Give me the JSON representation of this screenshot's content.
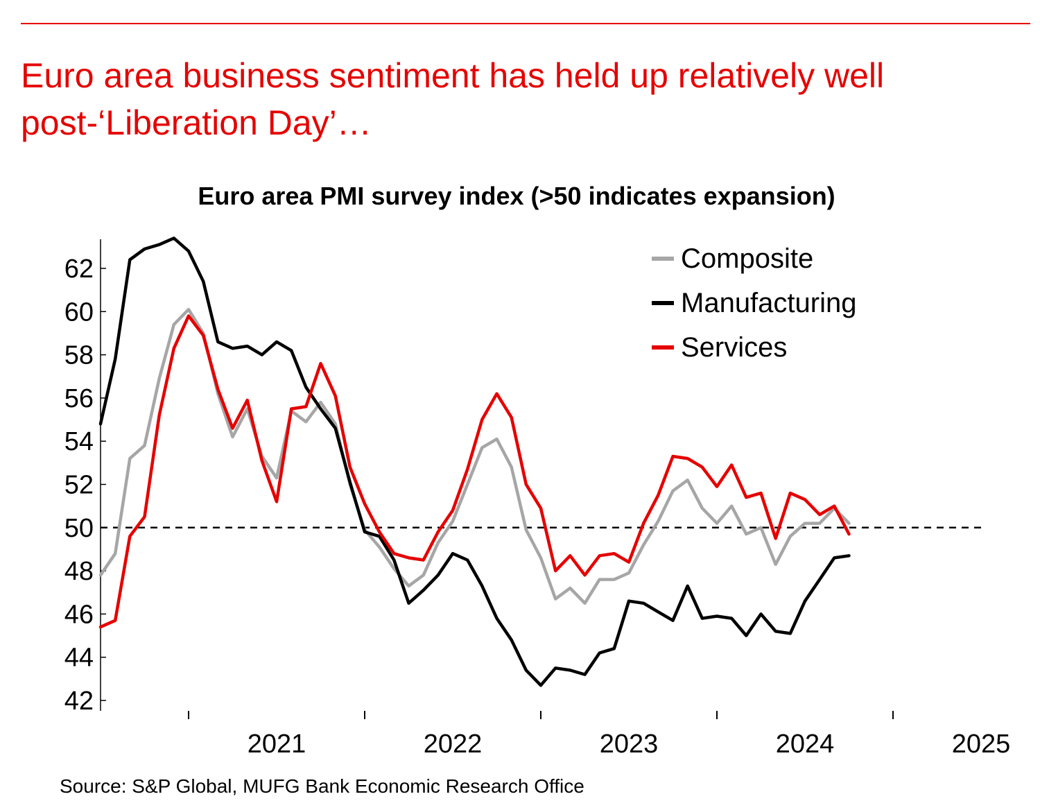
{
  "header": {
    "headline": "Euro area business sentiment has held up relatively well post-‘Liberation Day’…"
  },
  "colors": {
    "accent": "#e60000",
    "composite": "#a6a6a6",
    "manufacturing": "#000000",
    "services": "#e60000"
  },
  "footer": {
    "source": "Source: S&P Global, MUFG Bank Economic Research Office"
  },
  "chart_data": {
    "type": "line",
    "title": "Euro area PMI survey index (>50 indicates expansion)",
    "xlabel": "",
    "ylabel": "",
    "ylim": [
      42,
      63.5
    ],
    "yticks": [
      42,
      44,
      46,
      48,
      50,
      52,
      54,
      56,
      58,
      60,
      62
    ],
    "x_start": "2020-07",
    "x_range_years": [
      2020.5,
      2025.5
    ],
    "xtick_labels": [
      "2021",
      "2022",
      "2023",
      "2024",
      "2025"
    ],
    "reference_line": {
      "value": 50,
      "style": "dashed"
    },
    "legend_position": "top-right",
    "series": [
      {
        "name": "Composite",
        "color": "#a6a6a6",
        "values": [
          47.8,
          48.8,
          53.2,
          53.8,
          56.9,
          59.4,
          60.1,
          59.0,
          56.2,
          54.2,
          55.5,
          53.3,
          52.3,
          55.4,
          54.9,
          55.8,
          54.8,
          52.0,
          49.9,
          49.1,
          48.1,
          47.3,
          47.8,
          49.3,
          50.3,
          52.0,
          53.7,
          54.1,
          52.8,
          49.9,
          48.6,
          46.7,
          47.2,
          46.5,
          47.6,
          47.6,
          47.9,
          49.2,
          50.3,
          51.7,
          52.2,
          50.9,
          50.2,
          51.0,
          49.7,
          50.0,
          48.3,
          49.6,
          50.2,
          50.2,
          50.9,
          50.2
        ]
      },
      {
        "name": "Manufacturing",
        "color": "#000000",
        "values": [
          54.8,
          57.8,
          62.4,
          62.9,
          63.1,
          63.4,
          62.8,
          61.4,
          58.6,
          58.3,
          58.4,
          58.0,
          58.6,
          58.2,
          56.5,
          55.5,
          54.6,
          52.1,
          49.8,
          49.6,
          48.5,
          46.5,
          47.1,
          47.8,
          48.8,
          48.5,
          47.3,
          45.8,
          44.8,
          43.4,
          42.7,
          43.5,
          43.4,
          43.2,
          44.2,
          44.4,
          46.6,
          46.5,
          46.1,
          45.7,
          47.3,
          45.8,
          45.9,
          45.8,
          45.0,
          46.0,
          45.2,
          45.1,
          46.6,
          47.6,
          48.6,
          48.7
        ]
      },
      {
        "name": "Services",
        "color": "#e60000",
        "values": [
          45.4,
          45.7,
          49.6,
          50.5,
          55.2,
          58.3,
          59.8,
          58.9,
          56.4,
          54.6,
          55.9,
          53.1,
          51.2,
          55.5,
          55.6,
          57.6,
          56.1,
          52.8,
          51.1,
          49.8,
          48.8,
          48.6,
          48.5,
          49.8,
          50.8,
          52.7,
          55.0,
          56.2,
          55.1,
          52.0,
          50.9,
          48.0,
          48.7,
          47.8,
          48.7,
          48.8,
          48.4,
          50.2,
          51.5,
          53.3,
          53.2,
          52.8,
          51.9,
          52.9,
          51.4,
          51.6,
          49.5,
          51.6,
          51.3,
          50.6,
          51.0,
          49.7
        ]
      }
    ]
  }
}
